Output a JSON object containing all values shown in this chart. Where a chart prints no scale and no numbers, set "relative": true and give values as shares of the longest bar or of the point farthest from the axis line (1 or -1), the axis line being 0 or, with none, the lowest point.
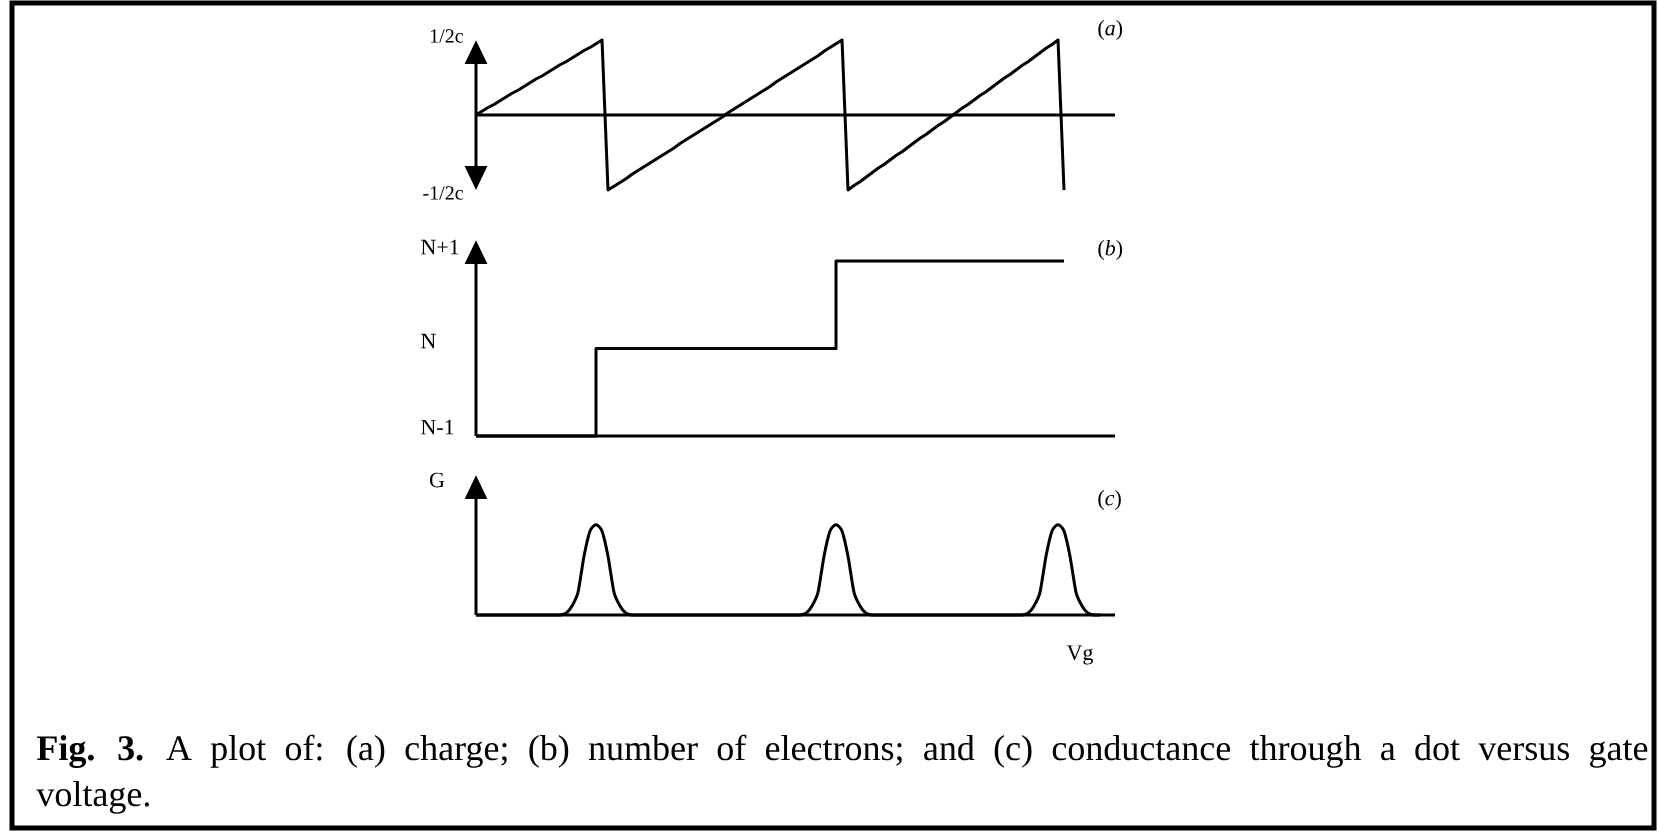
{
  "chart_data": [
    {
      "type": "line",
      "title": "(*a*)",
      "relative": true,
      "categories": [
        null,
        null,
        null,
        null,
        null,
        null,
        null,
        null,
        null,
        null,
        null,
        null,
        null,
        null,
        null,
        null,
        null,
        null,
        null,
        null,
        null,
        null,
        null,
        null,
        null,
        null,
        null,
        null,
        null,
        null,
        null,
        null,
        null,
        null,
        null,
        null,
        null,
        null,
        null,
        null,
        null,
        null,
        null,
        null,
        null,
        null,
        null,
        null,
        null,
        null,
        null,
        null,
        null,
        null,
        null,
        null,
        null,
        null,
        null,
        null,
        null,
        null,
        null,
        null,
        null,
        null,
        null,
        null,
        null,
        null,
        null,
        null,
        null,
        null,
        null,
        null,
        null,
        null,
        null,
        null,
        null,
        null,
        null,
        null,
        null,
        null,
        null,
        null,
        null,
        null,
        null,
        null,
        null,
        null,
        null,
        null,
        null,
        null,
        null,
        null,
        null,
        null,
        null,
        null,
        null
      ],
      "values": [
        0,
        0.05,
        0.1,
        0.14,
        0.19,
        0.24,
        0.29,
        0.33,
        0.38,
        0.43,
        0.48,
        0.52,
        0.57,
        0.62,
        0.67,
        0.71,
        0.76,
        0.81,
        0.86,
        0.9,
        0.95,
        1,
        -1,
        -0.95,
        -0.9,
        -0.85,
        -0.79,
        -0.74,
        -0.69,
        -0.64,
        -0.59,
        -0.54,
        -0.49,
        -0.44,
        -0.38,
        -0.33,
        -0.28,
        -0.23,
        -0.18,
        -0.13,
        -0.08,
        -0.03,
        0.03,
        0.08,
        0.13,
        0.18,
        0.23,
        0.28,
        0.33,
        0.38,
        0.44,
        0.49,
        0.54,
        0.59,
        0.64,
        0.69,
        0.74,
        0.79,
        0.85,
        0.9,
        0.95,
        1,
        -1,
        -0.94,
        -0.89,
        -0.83,
        -0.77,
        -0.71,
        -0.66,
        -0.6,
        -0.54,
        -0.49,
        -0.43,
        -0.37,
        -0.31,
        -0.26,
        -0.2,
        -0.14,
        -0.09,
        -0.03,
        0.03,
        0.09,
        0.14,
        0.2,
        0.26,
        0.31,
        0.37,
        0.43,
        0.49,
        0.54,
        0.6,
        0.66,
        0.71,
        0.77,
        0.83,
        0.89,
        0.94,
        1,
        -1,
        null,
        null,
        null,
        null,
        null,
        null
      ],
      "color": "#000000",
      "annotations": [
        "-1/2c",
        "1/2c"
      ]
    },
    {
      "type": "step",
      "title": "(*b*)",
      "relative": true,
      "categories": [
        null,
        null,
        null,
        null,
        null,
        null,
        null,
        null,
        null,
        null,
        null,
        null,
        null,
        null,
        null,
        null,
        null,
        null,
        null,
        null,
        null,
        null,
        null,
        null,
        null,
        null,
        null,
        null,
        null,
        null,
        null,
        null,
        null,
        null,
        null,
        null,
        null,
        null,
        null,
        null,
        null,
        null,
        null,
        null,
        null,
        null,
        null,
        null,
        null,
        null,
        null,
        null,
        null,
        null,
        null,
        null,
        null,
        null,
        null,
        null,
        null,
        null,
        null,
        null,
        null,
        null,
        null,
        null,
        null,
        null,
        null,
        null,
        null,
        null,
        null,
        null,
        null,
        null,
        null,
        null,
        null,
        null,
        null,
        null,
        null,
        null,
        null,
        null,
        null,
        null,
        null,
        null,
        null,
        null,
        null,
        null,
        null,
        null,
        null,
        null,
        null,
        null,
        null,
        null,
        null
      ],
      "values": [
        0,
        0,
        0,
        0,
        0,
        0,
        0,
        0,
        0,
        0,
        0,
        0,
        0,
        0,
        0,
        0,
        0,
        0,
        0,
        0,
        0.5,
        0.5,
        0.5,
        0.5,
        0.5,
        0.5,
        0.5,
        0.5,
        0.5,
        0.5,
        0.5,
        0.5,
        0.5,
        0.5,
        0.5,
        0.5,
        0.5,
        0.5,
        0.5,
        0.5,
        0.5,
        0.5,
        0.5,
        0.5,
        0.5,
        0.5,
        0.5,
        0.5,
        0.5,
        0.5,
        0.5,
        0.5,
        0.5,
        0.5,
        0.5,
        0.5,
        0.5,
        0.5,
        0.5,
        0.5,
        1,
        1,
        1,
        1,
        1,
        1,
        1,
        1,
        1,
        1,
        1,
        1,
        1,
        1,
        1,
        1,
        1,
        1,
        1,
        1,
        1,
        1,
        1,
        1,
        1,
        1,
        1,
        1,
        1,
        1,
        1,
        1,
        1,
        1,
        1,
        1,
        1,
        1,
        1,
        null,
        null,
        null,
        null,
        null,
        null
      ],
      "color": "#000000",
      "annotations": [
        "N-1",
        "N",
        "N+1"
      ]
    },
    {
      "type": "line",
      "title": "(*c*)",
      "xlabel": "Vg",
      "ylabel": "G",
      "relative": true,
      "categories": [
        null,
        null,
        null,
        null,
        null,
        null,
        null,
        null,
        null,
        null,
        null,
        null,
        null,
        null,
        null,
        null,
        null,
        null,
        null,
        null,
        null,
        null,
        null,
        null,
        null,
        null,
        null,
        null,
        null,
        null,
        null,
        null,
        null,
        null,
        null,
        null,
        null,
        null,
        null,
        null,
        null,
        null,
        null,
        null,
        null,
        null,
        null,
        null,
        null,
        null,
        null,
        null,
        null,
        null,
        null,
        null,
        null,
        null,
        null,
        null,
        null,
        null,
        null,
        null,
        null,
        null,
        null,
        null,
        null,
        null,
        null,
        null,
        null,
        null,
        null,
        null,
        null,
        null,
        null,
        null,
        null,
        null,
        null,
        null,
        null,
        null,
        null,
        null,
        null,
        null,
        null,
        null,
        null,
        null,
        null,
        null,
        null,
        null,
        null,
        null,
        null,
        null,
        null,
        null,
        null
      ],
      "values": [
        0,
        0,
        0,
        0,
        0,
        0,
        0,
        0,
        0,
        0,
        0,
        0,
        0,
        0,
        0,
        0.02,
        0.1,
        0.25,
        0.65,
        0.93,
        1,
        0.93,
        0.65,
        0.25,
        0.1,
        0.02,
        0,
        0,
        0,
        0,
        0,
        0,
        0,
        0,
        0,
        0,
        0,
        0,
        0,
        0,
        0,
        0,
        0,
        0,
        0,
        0,
        0,
        0,
        0,
        0,
        0,
        0,
        0,
        0,
        0,
        0.02,
        0.1,
        0.25,
        0.65,
        0.93,
        1,
        0.93,
        0.65,
        0.25,
        0.1,
        0.02,
        0,
        0,
        0,
        0,
        0,
        0,
        0,
        0,
        0,
        0,
        0,
        0,
        0,
        0,
        0,
        0,
        0,
        0,
        0,
        0,
        0,
        0,
        0,
        0,
        0,
        0,
        0.02,
        0.1,
        0.25,
        0.65,
        0.93,
        1,
        0.93,
        0.65,
        0.25,
        0.1,
        0.02,
        0,
        0
      ],
      "color": "#000000",
      "annotations": [
        "**Fig. 3.** A plot of: (a) charge; (b) number of electrons; and (c) conductance through a dot versus gate voltage."
      ]
    }
  ]
}
